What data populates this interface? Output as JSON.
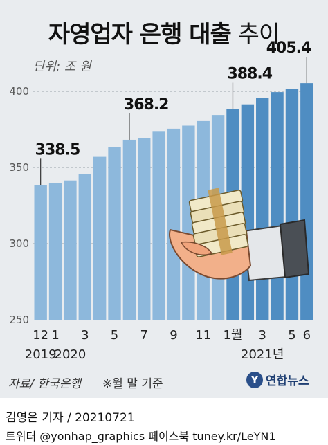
{
  "header": {
    "title_main": "자영업자 은행 대출",
    "title_light": "추이",
    "unit": "단위: 조 원"
  },
  "chart_data": {
    "type": "bar",
    "categories": [
      "2019-12",
      "2020-01",
      "2020-02",
      "2020-03",
      "2020-04",
      "2020-05",
      "2020-06",
      "2020-07",
      "2020-08",
      "2020-09",
      "2020-10",
      "2020-11",
      "2020-12",
      "2021-01",
      "2021-02",
      "2021-03",
      "2021-04",
      "2021-05",
      "2021-06"
    ],
    "values": [
      338.5,
      340.0,
      341.5,
      345.5,
      357.0,
      363.5,
      368.2,
      369.5,
      373.5,
      375.5,
      377.5,
      380.5,
      384.5,
      388.4,
      391.5,
      395.5,
      399.5,
      401.5,
      405.4
    ],
    "data_labels": {
      "0": "338.5",
      "6": "368.2",
      "13": "388.4",
      "18": "405.4"
    },
    "yticks": [
      250,
      300,
      350,
      400
    ],
    "ylim": [
      250,
      410
    ],
    "xtick_labels": [
      {
        "index": 0,
        "label": "12"
      },
      {
        "index": 1,
        "label": "1"
      },
      {
        "index": 3,
        "label": "3"
      },
      {
        "index": 5,
        "label": "5"
      },
      {
        "index": 7,
        "label": "7"
      },
      {
        "index": 9,
        "label": "9"
      },
      {
        "index": 11,
        "label": "11"
      },
      {
        "index": 13,
        "label": "1월"
      },
      {
        "index": 15,
        "label": "3"
      },
      {
        "index": 17,
        "label": "5"
      },
      {
        "index": 18,
        "label": "6"
      }
    ],
    "year_labels": [
      {
        "index": 0,
        "label": "2019"
      },
      {
        "index": 2,
        "label": "2020"
      },
      {
        "index": 15,
        "label": "2021년"
      }
    ],
    "grid": true,
    "bar_color_2019_2020": "#8db8dc",
    "bar_color_2021": "#4f8dc2"
  },
  "footer": {
    "source": "자료/ 한국은행",
    "note": "※월 말 기준",
    "logo_text": "연합뉴스",
    "credit": "김영은 기자 / 20210721",
    "social": "트위터 @yonhap_graphics  페이스북 tuney.kr/LeYN1"
  }
}
